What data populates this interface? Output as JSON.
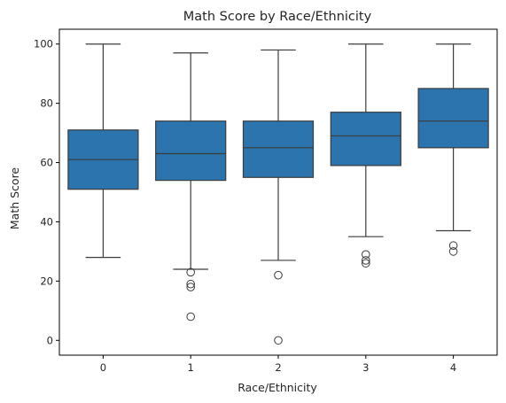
{
  "chart_data": {
    "type": "box",
    "title": "Math Score by Race/Ethnicity",
    "xlabel": "Race/Ethnicity",
    "ylabel": "Math Score",
    "categories": [
      "0",
      "1",
      "2",
      "3",
      "4"
    ],
    "ylim": [
      -5,
      105
    ],
    "yticks": [
      0,
      20,
      40,
      60,
      80,
      100
    ],
    "box_color": "#2b74ad",
    "line_color": "#3c3c3c",
    "boxes": [
      {
        "category": "0",
        "whisker_low": 28,
        "q1": 51,
        "median": 61,
        "q3": 71,
        "whisker_high": 100,
        "outliers": []
      },
      {
        "category": "1",
        "whisker_low": 24,
        "q1": 54,
        "median": 63,
        "q3": 74,
        "whisker_high": 97,
        "outliers": [
          23,
          19,
          18,
          8
        ]
      },
      {
        "category": "2",
        "whisker_low": 27,
        "q1": 55,
        "median": 65,
        "q3": 74,
        "whisker_high": 98,
        "outliers": [
          22,
          0
        ]
      },
      {
        "category": "3",
        "whisker_low": 35,
        "q1": 59,
        "median": 69,
        "q3": 77,
        "whisker_high": 100,
        "outliers": [
          29,
          27,
          26
        ]
      },
      {
        "category": "4",
        "whisker_low": 37,
        "q1": 65,
        "median": 74,
        "q3": 85,
        "whisker_high": 100,
        "outliers": [
          32,
          30
        ]
      }
    ]
  }
}
